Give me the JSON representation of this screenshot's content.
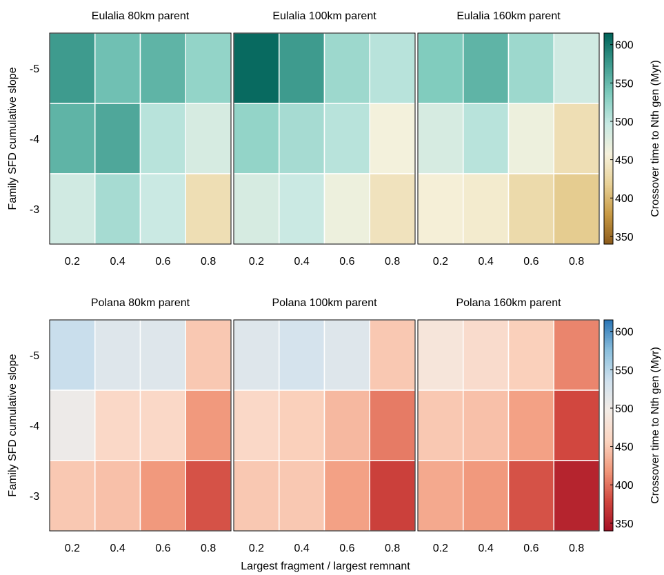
{
  "chart_data": [
    {
      "type": "heatmap",
      "title": "Eulalia 80km parent",
      "x": [
        0.2,
        0.4,
        0.6,
        0.8
      ],
      "y": [
        -5,
        -4,
        -3
      ],
      "values": [
        [
          575,
          545,
          555,
          525
        ],
        [
          555,
          565,
          505,
          485
        ],
        [
          490,
          515,
          495,
          435
        ]
      ],
      "colormap": "teal-brown"
    },
    {
      "type": "heatmap",
      "title": "Eulalia 100km parent",
      "x": [
        0.2,
        0.4,
        0.6,
        0.8
      ],
      "y": [
        -5,
        -4,
        -3
      ],
      "values": [
        [
          610,
          575,
          520,
          505
        ],
        [
          525,
          515,
          505,
          460
        ],
        [
          485,
          495,
          465,
          440
        ]
      ],
      "colormap": "teal-brown"
    },
    {
      "type": "heatmap",
      "title": "Eulalia 160km parent",
      "x": [
        0.2,
        0.4,
        0.6,
        0.8
      ],
      "y": [
        -5,
        -4,
        -3
      ],
      "values": [
        [
          535,
          555,
          520,
          490
        ],
        [
          485,
          505,
          465,
          435
        ],
        [
          455,
          450,
          430,
          415
        ]
      ],
      "colormap": "teal-brown"
    },
    {
      "type": "heatmap",
      "title": "Polana 80km parent",
      "x": [
        0.2,
        0.4,
        0.6,
        0.8
      ],
      "y": [
        -5,
        -4,
        -3
      ],
      "values": [
        [
          540,
          520,
          520,
          450
        ],
        [
          505,
          465,
          465,
          420
        ],
        [
          450,
          445,
          420,
          385
        ]
      ],
      "colormap": "blue-red"
    },
    {
      "type": "heatmap",
      "title": "Polana 100km parent",
      "x": [
        0.2,
        0.4,
        0.6,
        0.8
      ],
      "y": [
        -5,
        -4,
        -3
      ],
      "values": [
        [
          520,
          530,
          520,
          450
        ],
        [
          465,
          455,
          440,
          405
        ],
        [
          450,
          450,
          425,
          375
        ]
      ],
      "colormap": "blue-red"
    },
    {
      "type": "heatmap",
      "title": "Polana 160km parent",
      "x": [
        0.2,
        0.4,
        0.6,
        0.8
      ],
      "y": [
        -5,
        -4,
        -3
      ],
      "values": [
        [
          485,
          470,
          455,
          410
        ],
        [
          450,
          445,
          425,
          380
        ],
        [
          430,
          420,
          385,
          355
        ]
      ],
      "colormap": "blue-red"
    }
  ],
  "figure": {
    "xlabel": "Largest fragment / largest remnant",
    "ylabel": "Family SFD cumulative slope",
    "xticks": [
      "0.2",
      "0.4",
      "0.6",
      "0.8"
    ],
    "yticks": [
      "-5",
      "-4",
      "-3"
    ],
    "colorbar_label": "Crossover time to Nth gen (Myr)",
    "colorbar_ticks": [
      "350",
      "400",
      "450",
      "500",
      "550",
      "600"
    ],
    "colorbar_range": [
      340,
      615
    ],
    "colormaps": {
      "teal-brown": [
        "#8c5a1a",
        "#c89a45",
        "#e8d197",
        "#f6f1dc",
        "#c7e9e3",
        "#7ecbbd",
        "#3d9a8d",
        "#00635a"
      ],
      "blue-red": [
        "#a50f24",
        "#d0463e",
        "#f1977a",
        "#fbd4c0",
        "#f4ece6",
        "#cfe1ee",
        "#8bbfdd",
        "#2b76b6"
      ]
    }
  }
}
